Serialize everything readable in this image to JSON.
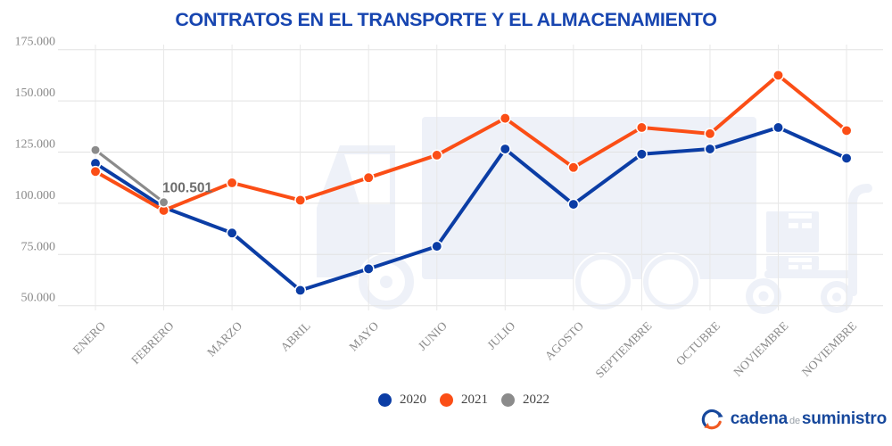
{
  "chart_data": {
    "type": "line",
    "title": "CONTRATOS EN EL TRANSPORTE Y EL ALMACENAMIENTO",
    "categories": [
      "ENERO",
      "FEBRERO",
      "MARZO",
      "ABRIL",
      "MAYO",
      "JUNIO",
      "JULIO",
      "AGOSTO",
      "SEPTIEMBRE",
      "OCTUBRE",
      "NOVIEMBRE",
      "NOVIEMBRE"
    ],
    "y_axis": {
      "tick_labels": [
        "175.000",
        "150.000",
        "125.000",
        "100.000",
        "75.000",
        "50.000"
      ],
      "tick_values": [
        175000,
        150000,
        125000,
        100000,
        75000,
        50000
      ],
      "range": [
        50000,
        175000
      ]
    },
    "series": [
      {
        "name": "2020",
        "color": "#0b3da5",
        "values": [
          119500,
          98000,
          85500,
          57500,
          68000,
          79000,
          126500,
          99500,
          124000,
          126500,
          137000,
          122000
        ]
      },
      {
        "name": "2021",
        "color": "#fb4e16",
        "values": [
          115500,
          96500,
          110000,
          101500,
          112500,
          123500,
          141500,
          117500,
          137000,
          134000,
          162500,
          135500
        ]
      },
      {
        "name": "2022",
        "color": "#8b8b8b",
        "values": [
          126000,
          100501,
          null,
          null,
          null,
          null,
          null,
          null,
          null,
          null,
          null,
          null
        ]
      }
    ],
    "annotation": {
      "text": "100.501",
      "series": "2022",
      "category_index": 1,
      "value": 100501
    },
    "grid": true,
    "legend_position": "bottom"
  },
  "footer": {
    "logo": {
      "brand_part1": "cadena",
      "brand_part2": "de",
      "brand_part3": "suministro"
    }
  },
  "colors": {
    "title": "#1745b0",
    "axis_text": "#8a8a8a",
    "annotation": "#6d6d6d",
    "grid_h": "#e2e2e2",
    "grid_v": "#e8e8e8",
    "watermark": "#eef1f8",
    "legend_text": "#444444",
    "logo_blue": "#17489c",
    "logo_orange": "#f15a22",
    "logo_gray": "#98a0a8"
  }
}
